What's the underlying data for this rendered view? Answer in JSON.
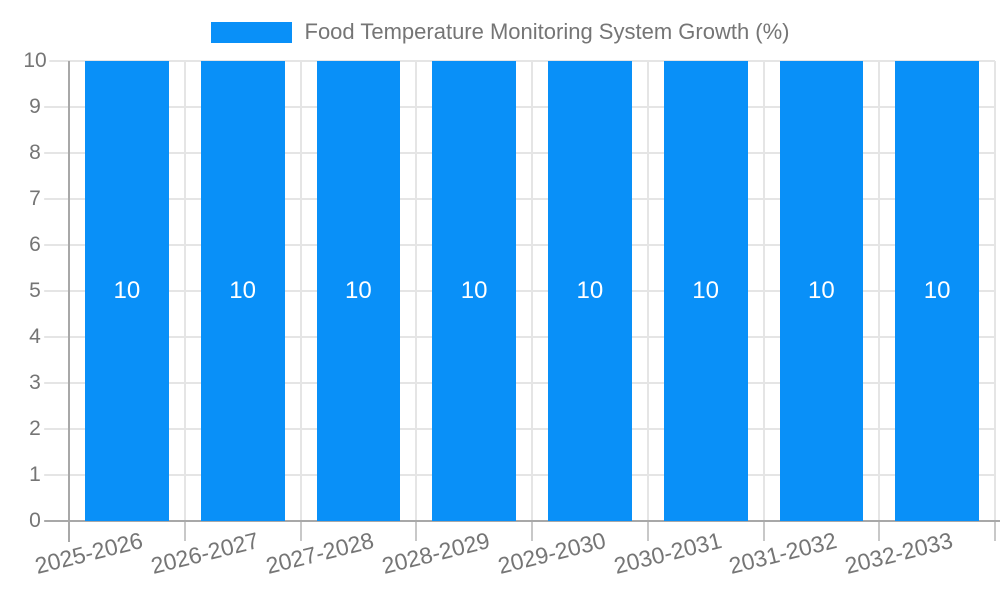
{
  "legend": {
    "series_label": "Food Temperature Monitoring System Growth (%)"
  },
  "chart_data": {
    "type": "bar",
    "title": "Food Temperature Monitoring System Growth (%)",
    "categories": [
      "2025-2026",
      "2026-2027",
      "2027-2028",
      "2028-2029",
      "2029-2030",
      "2030-2031",
      "2031-2032",
      "2032-2033"
    ],
    "series": [
      {
        "name": "Food Temperature Monitoring System Growth (%)",
        "values": [
          10,
          10,
          10,
          10,
          10,
          10,
          10,
          10
        ]
      }
    ],
    "value_labels": [
      "10",
      "10",
      "10",
      "10",
      "10",
      "10",
      "10",
      "10"
    ],
    "xlabel": "",
    "ylabel": "",
    "ylim": [
      0,
      10
    ],
    "yticks": [
      0,
      1,
      2,
      3,
      4,
      5,
      6,
      7,
      8,
      9,
      10
    ],
    "grid": true,
    "legend_position": "top"
  },
  "colors": {
    "bar": "#0990F8",
    "gridline": "#E5E5E5",
    "axis_line": "#A8A8A8",
    "tick": "#C8C8C8",
    "axis_label": "#757575",
    "bar_value_label": "#FFFFFF",
    "background": "#FFFFFF"
  }
}
